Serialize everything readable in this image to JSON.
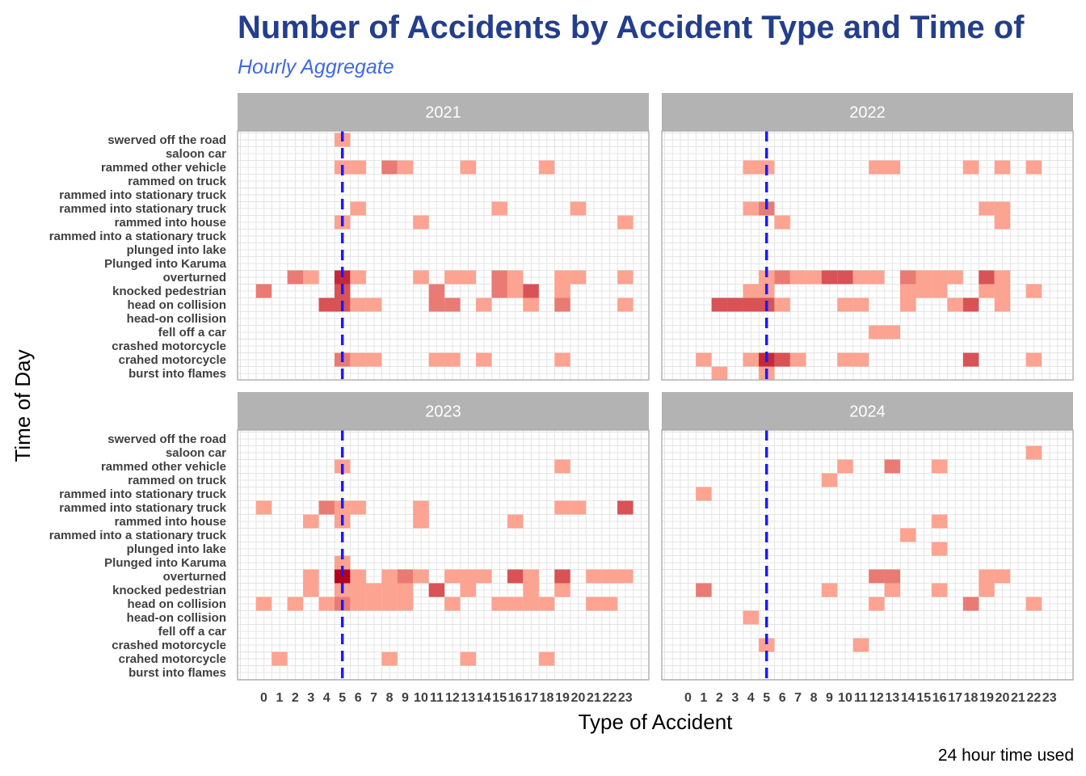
{
  "chart_data": {
    "type": "heatmap",
    "title": "Number of Accidents by Accident Type and Time of",
    "subtitle": "Hourly Aggregate",
    "xlabel": "Type of Accident",
    "ylabel": "Time of Day",
    "caption": "24 hour time used",
    "x_categories": [
      "0",
      "1",
      "2",
      "3",
      "4",
      "5",
      "6",
      "7",
      "8",
      "9",
      "10",
      "11",
      "12",
      "13",
      "14",
      "15",
      "16",
      "17",
      "18",
      "19",
      "20",
      "21",
      "22",
      "23"
    ],
    "y_categories": [
      "swerved off the road",
      "saloon car",
      "rammed other vehicle",
      "rammed on truck",
      "rammed into stationary truck",
      "rammed into stationary  truck",
      "rammed into house",
      "rammed into a stationary truck",
      "plunged into lake",
      "Plunged into Karuma",
      "overturned",
      "knocked pedestrian",
      "head on collision",
      "head-on collision",
      "fell off a car",
      "crashed motorcycle",
      "crahed motorcycle",
      "burst into flames"
    ],
    "reference_line": {
      "x": 6,
      "style": "dashed",
      "color": "#1a1aff"
    },
    "color_low": "#fca391",
    "color_high": "#b3001b",
    "grid": true,
    "panels": [
      {
        "label": "2021",
        "cells": [
          [
            "swerved off the road",
            6,
            1
          ],
          [
            "rammed other vehicle",
            6,
            1
          ],
          [
            "rammed other vehicle",
            7,
            1
          ],
          [
            "rammed other vehicle",
            9,
            2
          ],
          [
            "rammed other vehicle",
            10,
            1
          ],
          [
            "rammed other vehicle",
            14,
            1
          ],
          [
            "rammed other vehicle",
            19,
            1
          ],
          [
            "rammed into stationary  truck",
            7,
            1
          ],
          [
            "rammed into stationary  truck",
            16,
            1
          ],
          [
            "rammed into stationary  truck",
            21,
            1
          ],
          [
            "rammed into house",
            6,
            1
          ],
          [
            "rammed into house",
            11,
            1
          ],
          [
            "rammed into house",
            24,
            1
          ],
          [
            "overturned",
            3,
            2
          ],
          [
            "overturned",
            4,
            1
          ],
          [
            "overturned",
            6,
            4
          ],
          [
            "overturned",
            7,
            1
          ],
          [
            "overturned",
            11,
            1
          ],
          [
            "overturned",
            13,
            1
          ],
          [
            "overturned",
            14,
            1
          ],
          [
            "overturned",
            16,
            2
          ],
          [
            "overturned",
            17,
            1
          ],
          [
            "overturned",
            20,
            1
          ],
          [
            "overturned",
            21,
            1
          ],
          [
            "overturned",
            24,
            1
          ],
          [
            "knocked pedestrian",
            1,
            2
          ],
          [
            "knocked pedestrian",
            6,
            3
          ],
          [
            "knocked pedestrian",
            12,
            2
          ],
          [
            "knocked pedestrian",
            16,
            2
          ],
          [
            "knocked pedestrian",
            17,
            1
          ],
          [
            "knocked pedestrian",
            18,
            3
          ],
          [
            "knocked pedestrian",
            20,
            1
          ],
          [
            "head on collision",
            5,
            3
          ],
          [
            "head on collision",
            6,
            3
          ],
          [
            "head on collision",
            7,
            1
          ],
          [
            "head on collision",
            8,
            1
          ],
          [
            "head on collision",
            12,
            2
          ],
          [
            "head on collision",
            13,
            2
          ],
          [
            "head on collision",
            15,
            1
          ],
          [
            "head on collision",
            18,
            1
          ],
          [
            "head on collision",
            20,
            2
          ],
          [
            "head on collision",
            24,
            1
          ],
          [
            "crahed motorcycle",
            6,
            2
          ],
          [
            "crahed motorcycle",
            7,
            1
          ],
          [
            "crahed motorcycle",
            8,
            1
          ],
          [
            "crahed motorcycle",
            12,
            1
          ],
          [
            "crahed motorcycle",
            13,
            1
          ],
          [
            "crahed motorcycle",
            15,
            1
          ],
          [
            "crahed motorcycle",
            20,
            1
          ]
        ]
      },
      {
        "label": "2022",
        "cells": [
          [
            "rammed other vehicle",
            5,
            1
          ],
          [
            "rammed other vehicle",
            6,
            1
          ],
          [
            "rammed other vehicle",
            13,
            1
          ],
          [
            "rammed other vehicle",
            14,
            1
          ],
          [
            "rammed other vehicle",
            19,
            1
          ],
          [
            "rammed other vehicle",
            21,
            1
          ],
          [
            "rammed other vehicle",
            23,
            1
          ],
          [
            "rammed into stationary  truck",
            5,
            1
          ],
          [
            "rammed into stationary  truck",
            6,
            2
          ],
          [
            "rammed into stationary  truck",
            20,
            1
          ],
          [
            "rammed into stationary  truck",
            21,
            1
          ],
          [
            "rammed into house",
            7,
            1
          ],
          [
            "rammed into house",
            21,
            1
          ],
          [
            "overturned",
            6,
            1
          ],
          [
            "overturned",
            7,
            2
          ],
          [
            "overturned",
            8,
            1
          ],
          [
            "overturned",
            9,
            1
          ],
          [
            "overturned",
            10,
            3
          ],
          [
            "overturned",
            11,
            3
          ],
          [
            "overturned",
            12,
            1
          ],
          [
            "overturned",
            13,
            1
          ],
          [
            "overturned",
            15,
            2
          ],
          [
            "overturned",
            16,
            1
          ],
          [
            "overturned",
            17,
            1
          ],
          [
            "overturned",
            18,
            1
          ],
          [
            "overturned",
            20,
            3
          ],
          [
            "overturned",
            21,
            1
          ],
          [
            "knocked pedestrian",
            5,
            1
          ],
          [
            "knocked pedestrian",
            6,
            1
          ],
          [
            "knocked pedestrian",
            15,
            1
          ],
          [
            "knocked pedestrian",
            16,
            1
          ],
          [
            "knocked pedestrian",
            17,
            1
          ],
          [
            "knocked pedestrian",
            20,
            1
          ],
          [
            "knocked pedestrian",
            21,
            1
          ],
          [
            "knocked pedestrian",
            23,
            1
          ],
          [
            "head on collision",
            3,
            3
          ],
          [
            "head on collision",
            4,
            3
          ],
          [
            "head on collision",
            5,
            3
          ],
          [
            "head on collision",
            6,
            3
          ],
          [
            "head on collision",
            7,
            1
          ],
          [
            "head on collision",
            11,
            1
          ],
          [
            "head on collision",
            12,
            1
          ],
          [
            "head on collision",
            15,
            1
          ],
          [
            "head on collision",
            18,
            1
          ],
          [
            "head on collision",
            19,
            3
          ],
          [
            "head on collision",
            21,
            1
          ],
          [
            "fell off a car",
            13,
            1
          ],
          [
            "fell off a car",
            14,
            1
          ],
          [
            "crahed motorcycle",
            2,
            1
          ],
          [
            "crahed motorcycle",
            5,
            1
          ],
          [
            "crahed motorcycle",
            6,
            4
          ],
          [
            "crahed motorcycle",
            7,
            3
          ],
          [
            "crahed motorcycle",
            8,
            1
          ],
          [
            "crahed motorcycle",
            11,
            1
          ],
          [
            "crahed motorcycle",
            12,
            1
          ],
          [
            "crahed motorcycle",
            19,
            3
          ],
          [
            "crahed motorcycle",
            23,
            1
          ],
          [
            "burst into flames",
            3,
            1
          ],
          [
            "burst into flames",
            6,
            1
          ]
        ]
      },
      {
        "label": "2023",
        "cells": [
          [
            "rammed other vehicle",
            6,
            1
          ],
          [
            "rammed other vehicle",
            20,
            1
          ],
          [
            "rammed into stationary  truck",
            1,
            1
          ],
          [
            "rammed into stationary  truck",
            5,
            2
          ],
          [
            "rammed into stationary  truck",
            6,
            1
          ],
          [
            "rammed into stationary  truck",
            7,
            1
          ],
          [
            "rammed into stationary  truck",
            11,
            1
          ],
          [
            "rammed into stationary  truck",
            20,
            1
          ],
          [
            "rammed into stationary  truck",
            21,
            1
          ],
          [
            "rammed into stationary  truck",
            24,
            3
          ],
          [
            "rammed into house",
            4,
            1
          ],
          [
            "rammed into house",
            6,
            1
          ],
          [
            "rammed into house",
            11,
            1
          ],
          [
            "rammed into house",
            17,
            1
          ],
          [
            "Plunged into Karuma",
            6,
            1
          ],
          [
            "overturned",
            4,
            1
          ],
          [
            "overturned",
            6,
            5
          ],
          [
            "overturned",
            7,
            1
          ],
          [
            "overturned",
            9,
            1
          ],
          [
            "overturned",
            10,
            2
          ],
          [
            "overturned",
            11,
            1
          ],
          [
            "overturned",
            13,
            1
          ],
          [
            "overturned",
            14,
            1
          ],
          [
            "overturned",
            15,
            1
          ],
          [
            "overturned",
            17,
            3
          ],
          [
            "overturned",
            18,
            1
          ],
          [
            "overturned",
            20,
            3
          ],
          [
            "overturned",
            22,
            1
          ],
          [
            "overturned",
            23,
            1
          ],
          [
            "overturned",
            24,
            1
          ],
          [
            "knocked pedestrian",
            4,
            1
          ],
          [
            "knocked pedestrian",
            6,
            1
          ],
          [
            "knocked pedestrian",
            7,
            1
          ],
          [
            "knocked pedestrian",
            8,
            1
          ],
          [
            "knocked pedestrian",
            9,
            1
          ],
          [
            "knocked pedestrian",
            10,
            1
          ],
          [
            "knocked pedestrian",
            12,
            3
          ],
          [
            "knocked pedestrian",
            14,
            1
          ],
          [
            "knocked pedestrian",
            18,
            1
          ],
          [
            "knocked pedestrian",
            20,
            1
          ],
          [
            "head on collision",
            1,
            1
          ],
          [
            "head on collision",
            3,
            1
          ],
          [
            "head on collision",
            5,
            1
          ],
          [
            "head on collision",
            6,
            2
          ],
          [
            "head on collision",
            7,
            1
          ],
          [
            "head on collision",
            8,
            1
          ],
          [
            "head on collision",
            9,
            1
          ],
          [
            "head on collision",
            10,
            1
          ],
          [
            "head on collision",
            13,
            1
          ],
          [
            "head on collision",
            16,
            1
          ],
          [
            "head on collision",
            17,
            1
          ],
          [
            "head on collision",
            18,
            1
          ],
          [
            "head on collision",
            19,
            1
          ],
          [
            "head on collision",
            22,
            1
          ],
          [
            "head on collision",
            23,
            1
          ],
          [
            "crahed motorcycle",
            2,
            1
          ],
          [
            "crahed motorcycle",
            9,
            1
          ],
          [
            "crahed motorcycle",
            14,
            1
          ],
          [
            "crahed motorcycle",
            19,
            1
          ]
        ]
      },
      {
        "label": "2024",
        "cells": [
          [
            "saloon car",
            23,
            1
          ],
          [
            "rammed other vehicle",
            11,
            1
          ],
          [
            "rammed other vehicle",
            14,
            2
          ],
          [
            "rammed other vehicle",
            17,
            1
          ],
          [
            "rammed on truck",
            10,
            1
          ],
          [
            "rammed into stationary truck",
            2,
            1
          ],
          [
            "rammed into house",
            17,
            1
          ],
          [
            "rammed into a stationary truck",
            15,
            1
          ],
          [
            "plunged into lake",
            17,
            1
          ],
          [
            "overturned",
            13,
            2
          ],
          [
            "overturned",
            14,
            2
          ],
          [
            "overturned",
            20,
            1
          ],
          [
            "overturned",
            21,
            1
          ],
          [
            "knocked pedestrian",
            2,
            2
          ],
          [
            "knocked pedestrian",
            10,
            1
          ],
          [
            "knocked pedestrian",
            14,
            1
          ],
          [
            "knocked pedestrian",
            17,
            1
          ],
          [
            "knocked pedestrian",
            20,
            1
          ],
          [
            "head on collision",
            13,
            1
          ],
          [
            "head on collision",
            19,
            2
          ],
          [
            "head on collision",
            23,
            1
          ],
          [
            "head-on collision",
            5,
            1
          ],
          [
            "crashed motorcycle",
            6,
            1
          ],
          [
            "crashed motorcycle",
            12,
            1
          ]
        ]
      }
    ]
  }
}
